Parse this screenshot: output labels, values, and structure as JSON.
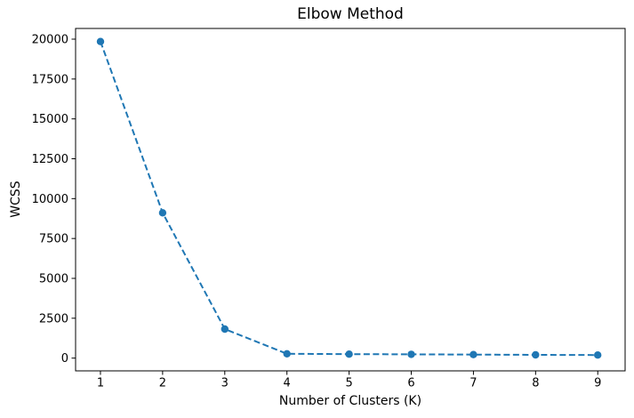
{
  "chart_data": {
    "type": "line",
    "title": "Elbow Method",
    "xlabel": "Number of Clusters (K)",
    "ylabel": "WCSS",
    "series": [
      {
        "name": "WCSS",
        "x": [
          1,
          2,
          3,
          4,
          5,
          6,
          7,
          8,
          9
        ],
        "y": [
          19850,
          9110,
          1820,
          270,
          250,
          235,
          220,
          205,
          195
        ],
        "color": "#1f77b4",
        "line_style": "dashed",
        "marker": "circle"
      }
    ],
    "xticks": [
      1,
      2,
      3,
      4,
      5,
      6,
      7,
      8,
      9
    ],
    "yticks": [
      0,
      2500,
      5000,
      7500,
      10000,
      12500,
      15000,
      17500,
      20000
    ],
    "xlim": [
      0.6,
      9.44
    ],
    "ylim": [
      -800,
      20670
    ],
    "grid": false,
    "legend": null,
    "spine_color": "#000000",
    "tick_label_color": "#000000",
    "background_color": "#ffffff"
  }
}
